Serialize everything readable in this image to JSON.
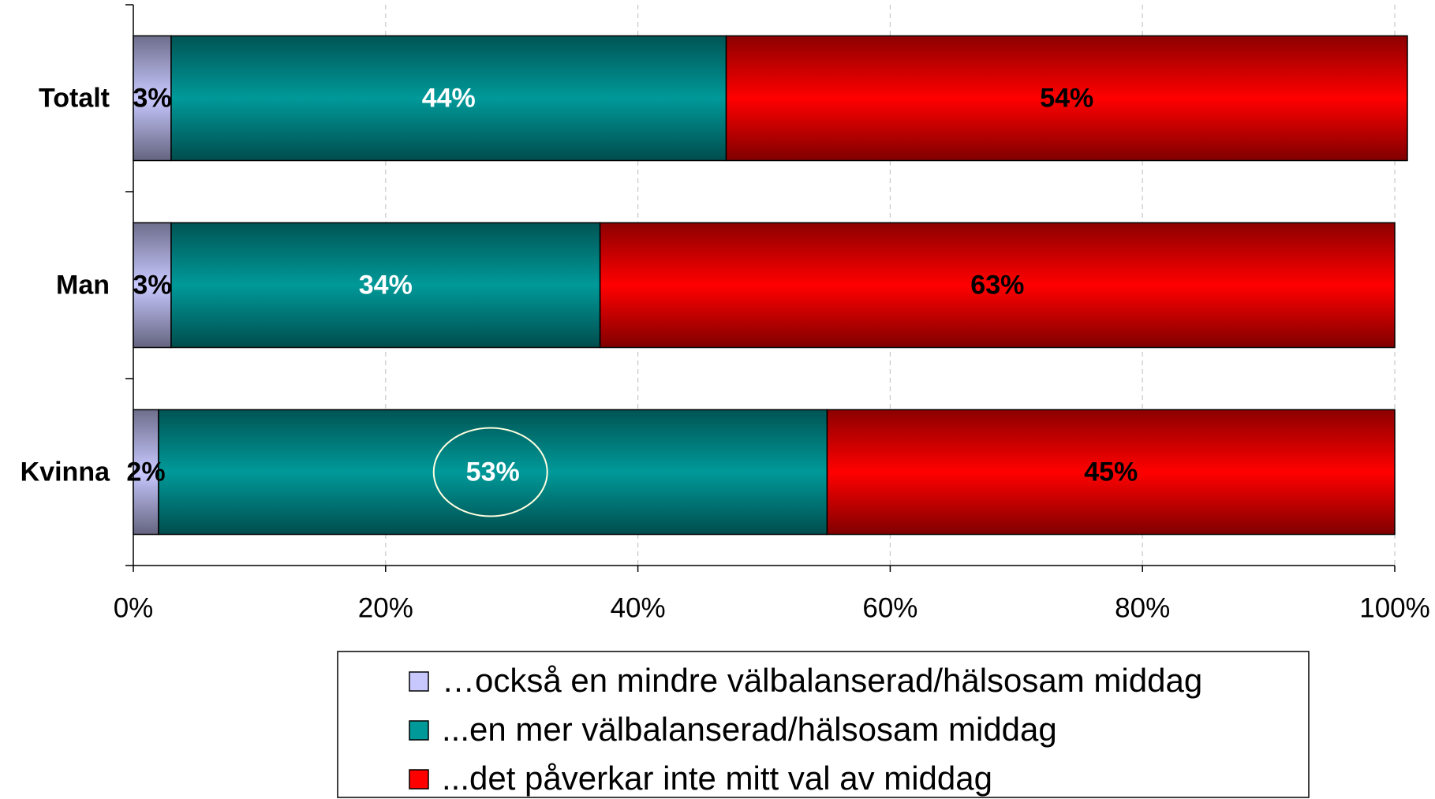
{
  "chart_data": {
    "type": "stacked_barh",
    "categories": [
      "Totalt",
      "Man",
      "Kvinna"
    ],
    "series": [
      {
        "name": "…också en mindre välbalanserad/hälsosam middag",
        "color": "#c8c8ff",
        "label_color": "#000000",
        "values": [
          3,
          3,
          2
        ],
        "value_labels": [
          "3%",
          "3%",
          "2%"
        ]
      },
      {
        "name": "...en mer välbalanserad/hälsosam middag",
        "color": "#009999",
        "label_color": "#ffffff",
        "values": [
          44,
          34,
          53
        ],
        "value_labels": [
          "44%",
          "34%",
          "53%"
        ]
      },
      {
        "name": "...det påverkar inte mitt val av middag",
        "color": "#ff0000",
        "label_color": "#000000",
        "values": [
          54,
          63,
          45
        ],
        "value_labels": [
          "54%",
          "63%",
          "45%"
        ]
      }
    ],
    "xlim": [
      0,
      100
    ],
    "xticks": [
      {
        "value": 0,
        "label": "0%"
      },
      {
        "value": 20,
        "label": "20%"
      },
      {
        "value": 40,
        "label": "40%"
      },
      {
        "value": 60,
        "label": "60%"
      },
      {
        "value": 80,
        "label": "80%"
      },
      {
        "value": 100,
        "label": "100%"
      }
    ],
    "grid": true,
    "legend": "bottom"
  }
}
